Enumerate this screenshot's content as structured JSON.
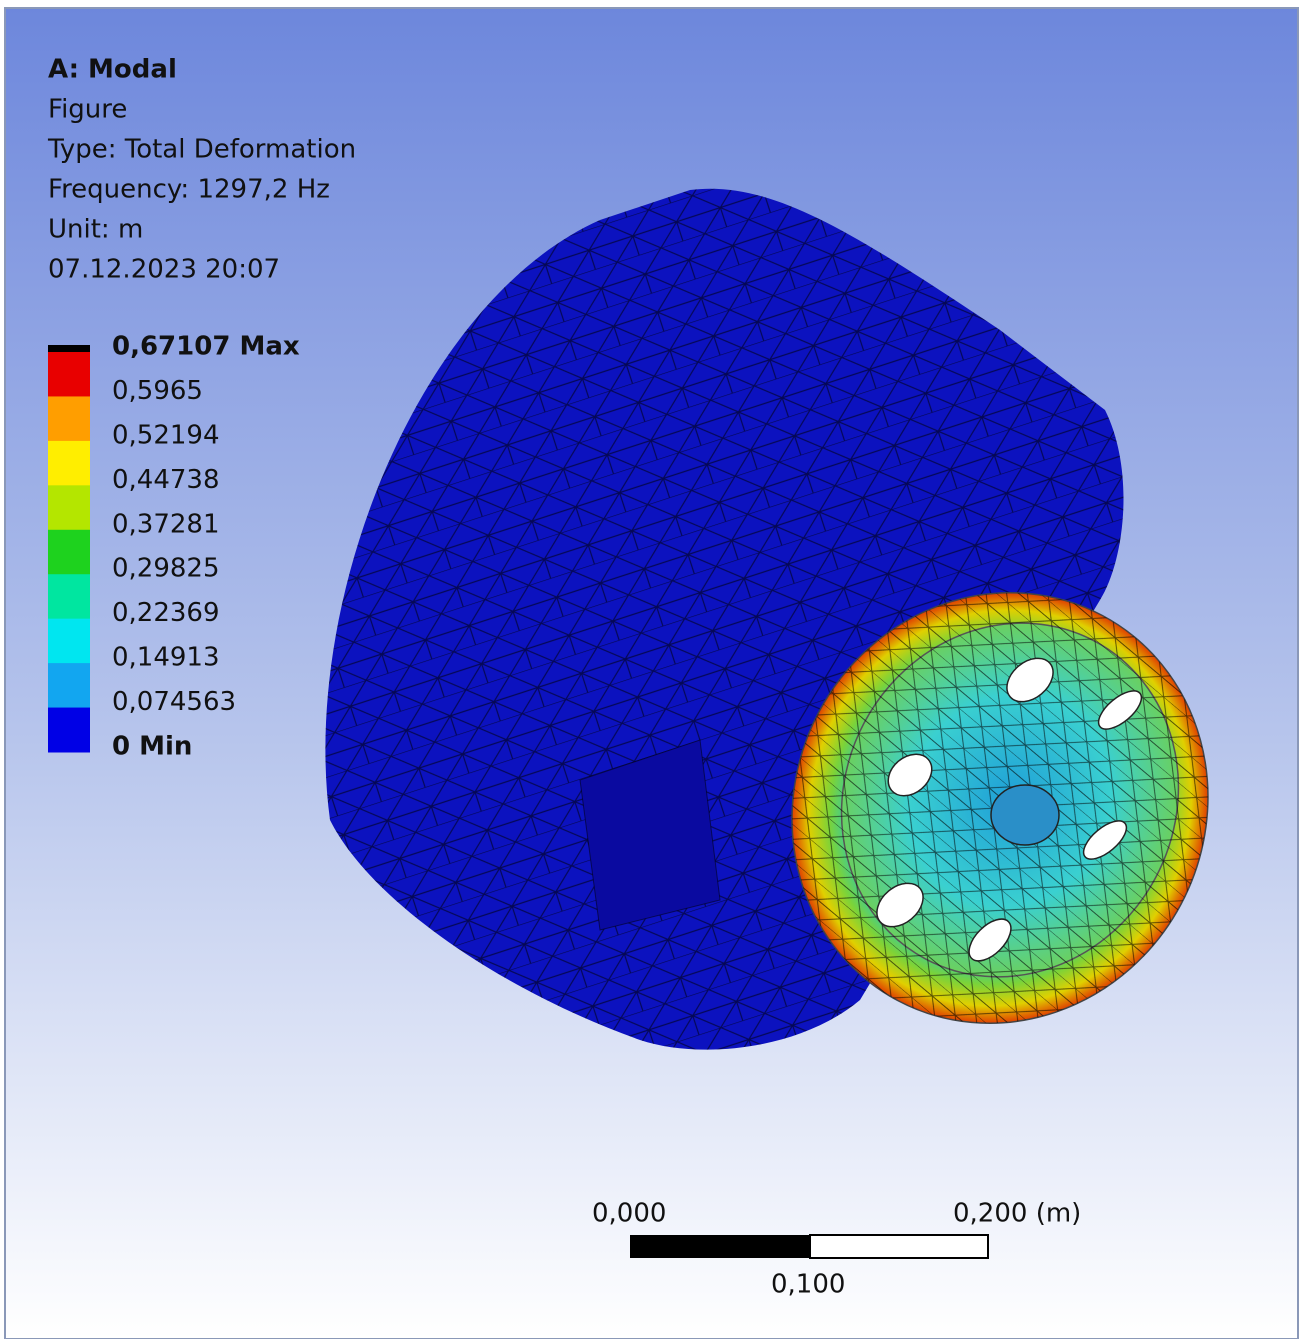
{
  "header": {
    "title": "A: Modal",
    "lines": [
      "Figure",
      "Type: Total Deformation",
      "Frequency: 1297,2 Hz",
      "Unit: m",
      "07.12.2023 20:07"
    ]
  },
  "legend": {
    "labels": [
      "0,67107 Max",
      "0,5965",
      "0,52194",
      "0,44738",
      "0,37281",
      "0,29825",
      "0,22369",
      "0,14913",
      "0,074563",
      "0 Min"
    ],
    "colors": [
      "#e80000",
      "#ff9e00",
      "#ffee00",
      "#b4e600",
      "#1ed21e",
      "#00e6a0",
      "#00e6f0",
      "#12a6f0",
      "#0000e6"
    ]
  },
  "scale_bar": {
    "start": "0,000",
    "end": "0,200 (m)",
    "middle": "0,100"
  }
}
